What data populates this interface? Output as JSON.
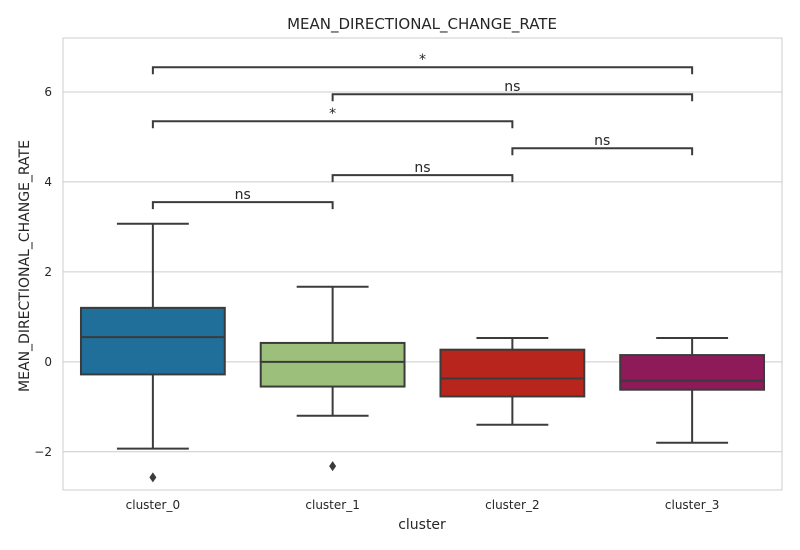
{
  "chart_data": {
    "type": "box",
    "title": "MEAN_DIRECTIONAL_CHANGE_RATE",
    "xlabel": "cluster",
    "ylabel": "MEAN_DIRECTIONAL_CHANGE_RATE",
    "ylim": [
      -2.85,
      7.2
    ],
    "yticks": [
      -2,
      0,
      2,
      4,
      6
    ],
    "grid": true,
    "categories": [
      "cluster_0",
      "cluster_1",
      "cluster_2",
      "cluster_3"
    ],
    "boxes": [
      {
        "category": "cluster_0",
        "whisker_low": -1.93,
        "q1": -0.28,
        "median": 0.55,
        "q3": 1.2,
        "whisker_high": 3.07,
        "outliers": [
          -2.57
        ],
        "color": "#1f6f9a"
      },
      {
        "category": "cluster_1",
        "whisker_low": -1.2,
        "q1": -0.55,
        "median": 0.0,
        "q3": 0.42,
        "whisker_high": 1.67,
        "outliers": [
          -2.32
        ],
        "color": "#9cbf7c"
      },
      {
        "category": "cluster_2",
        "whisker_low": -1.4,
        "q1": -0.77,
        "median": -0.37,
        "q3": 0.27,
        "whisker_high": 0.53,
        "outliers": [],
        "color": "#b8251d"
      },
      {
        "category": "cluster_3",
        "whisker_low": -1.8,
        "q1": -0.62,
        "median": -0.42,
        "q3": 0.15,
        "whisker_high": 0.53,
        "outliers": [],
        "color": "#8e1a5a"
      }
    ],
    "annotations": [
      {
        "from": 0,
        "to": 1,
        "y": 3.55,
        "label": "ns"
      },
      {
        "from": 1,
        "to": 2,
        "y": 4.15,
        "label": "ns"
      },
      {
        "from": 2,
        "to": 3,
        "y": 4.75,
        "label": "ns"
      },
      {
        "from": 0,
        "to": 2,
        "y": 5.35,
        "label": "*"
      },
      {
        "from": 1,
        "to": 3,
        "y": 5.95,
        "label": "ns"
      },
      {
        "from": 0,
        "to": 3,
        "y": 6.55,
        "label": "*"
      }
    ]
  }
}
